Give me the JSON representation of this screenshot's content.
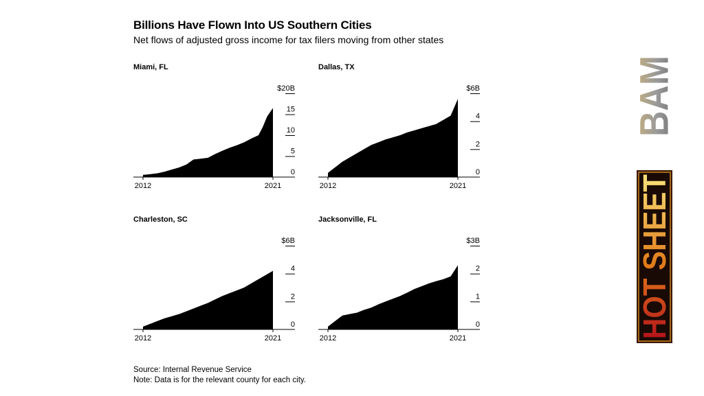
{
  "header": {
    "title": "Billions Have Flown Into US Southern Cities",
    "subtitle": "Net flows of adjusted gross income for tax filers moving from other states"
  },
  "footer": {
    "source": "Source: Internal Revenue Service",
    "note": "Note: Data is for the relevant county for each city."
  },
  "logos": {
    "bam": "BAM",
    "hot_sheet": "HOT SHEET",
    "hot_sheet_colors": [
      "#f9e27a",
      "#e07b1a",
      "#b5121b"
    ],
    "bam_colors": [
      "#8a8a8a",
      "#c9b27a"
    ]
  },
  "chart_data": [
    {
      "type": "area",
      "title": "Miami, FL",
      "x_ticks": [
        "2012",
        "2021"
      ],
      "y_ticks": [
        "$20B",
        "15",
        "10",
        "5",
        "0"
      ],
      "ylim": [
        0,
        20
      ],
      "x": [
        2012,
        2012.5,
        2013,
        2013.5,
        2014,
        2014.5,
        2015,
        2015.5,
        2016,
        2016.5,
        2017,
        2017.5,
        2018,
        2018.5,
        2019,
        2019.5,
        2020,
        2020.3,
        2020.6,
        2021
      ],
      "values": [
        0.5,
        0.7,
        0.9,
        1.3,
        1.8,
        2.3,
        3.0,
        4.2,
        4.4,
        4.6,
        5.5,
        6.3,
        7.0,
        7.6,
        8.3,
        9.2,
        10.0,
        12.0,
        14.5,
        16.5
      ]
    },
    {
      "type": "area",
      "title": "Dallas, TX",
      "x_ticks": [
        "2012",
        "2021"
      ],
      "y_ticks": [
        "$6B",
        "4",
        "2",
        "0"
      ],
      "ylim": [
        0,
        6
      ],
      "x": [
        2012,
        2012.5,
        2013,
        2013.5,
        2014,
        2014.5,
        2015,
        2015.5,
        2016,
        2016.5,
        2017,
        2017.5,
        2018,
        2018.5,
        2019,
        2019.5,
        2020,
        2020.5,
        2021
      ],
      "values": [
        0.3,
        0.7,
        1.1,
        1.4,
        1.7,
        2.0,
        2.3,
        2.5,
        2.7,
        2.85,
        3.0,
        3.2,
        3.35,
        3.5,
        3.65,
        3.8,
        4.1,
        4.4,
        5.6
      ]
    },
    {
      "type": "area",
      "title": "Charleston, SC",
      "x_ticks": [
        "2012",
        "2021"
      ],
      "y_ticks": [
        "$6B",
        "4",
        "2",
        "0"
      ],
      "ylim": [
        0,
        6
      ],
      "x": [
        2012,
        2012.5,
        2013,
        2013.5,
        2014,
        2014.5,
        2015,
        2015.5,
        2016,
        2016.5,
        2017,
        2017.5,
        2018,
        2018.5,
        2019,
        2019.5,
        2020,
        2020.5,
        2021
      ],
      "values": [
        0.2,
        0.4,
        0.6,
        0.8,
        0.95,
        1.1,
        1.3,
        1.5,
        1.7,
        1.9,
        2.15,
        2.4,
        2.6,
        2.8,
        3.0,
        3.3,
        3.6,
        3.9,
        4.2
      ]
    },
    {
      "type": "area",
      "title": "Jacksonville, FL",
      "x_ticks": [
        "2012",
        "2021"
      ],
      "y_ticks": [
        "$3B",
        "2",
        "1",
        "0"
      ],
      "ylim": [
        0,
        3
      ],
      "x": [
        2012,
        2012.5,
        2013,
        2013.5,
        2014,
        2014.5,
        2015,
        2015.5,
        2016,
        2016.5,
        2017,
        2017.5,
        2018,
        2018.5,
        2019,
        2019.5,
        2020,
        2020.5,
        2021
      ],
      "values": [
        0.1,
        0.3,
        0.5,
        0.55,
        0.6,
        0.7,
        0.78,
        0.9,
        1.0,
        1.1,
        1.2,
        1.32,
        1.45,
        1.55,
        1.65,
        1.73,
        1.8,
        1.9,
        2.3
      ]
    }
  ]
}
